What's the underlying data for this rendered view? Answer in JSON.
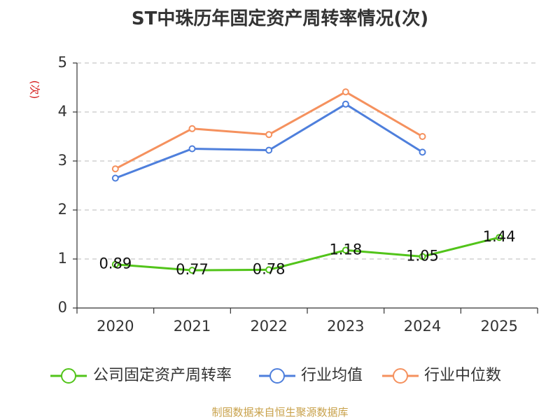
{
  "chart_data": {
    "type": "line",
    "title": "ST中珠历年固定资产周转率情况(次)",
    "ylabel": "(次)",
    "xlabel": "",
    "ylim": [
      0,
      5
    ],
    "yticks": [
      "0",
      "1",
      "2",
      "3",
      "4",
      "5"
    ],
    "categories": [
      "2020",
      "2021",
      "2022",
      "2023",
      "2024",
      "2025"
    ],
    "grid": true,
    "legend_position": "bottom",
    "series": [
      {
        "name": "公司固定资产周转率",
        "color": "#52c41a",
        "values": [
          0.89,
          0.77,
          0.78,
          1.18,
          1.05,
          1.44
        ],
        "labels": [
          "0.89",
          "0.77",
          "0.78",
          "1.18",
          "1.05",
          "1.44"
        ]
      },
      {
        "name": "行业均值",
        "color": "#4e7fdc",
        "values": [
          2.65,
          3.25,
          3.22,
          4.16,
          3.18,
          null
        ]
      },
      {
        "name": "行业中位数",
        "color": "#f5915e",
        "values": [
          2.84,
          3.66,
          3.54,
          4.41,
          3.5,
          null
        ]
      }
    ]
  },
  "source": "制图数据来自恒生聚源数据库"
}
